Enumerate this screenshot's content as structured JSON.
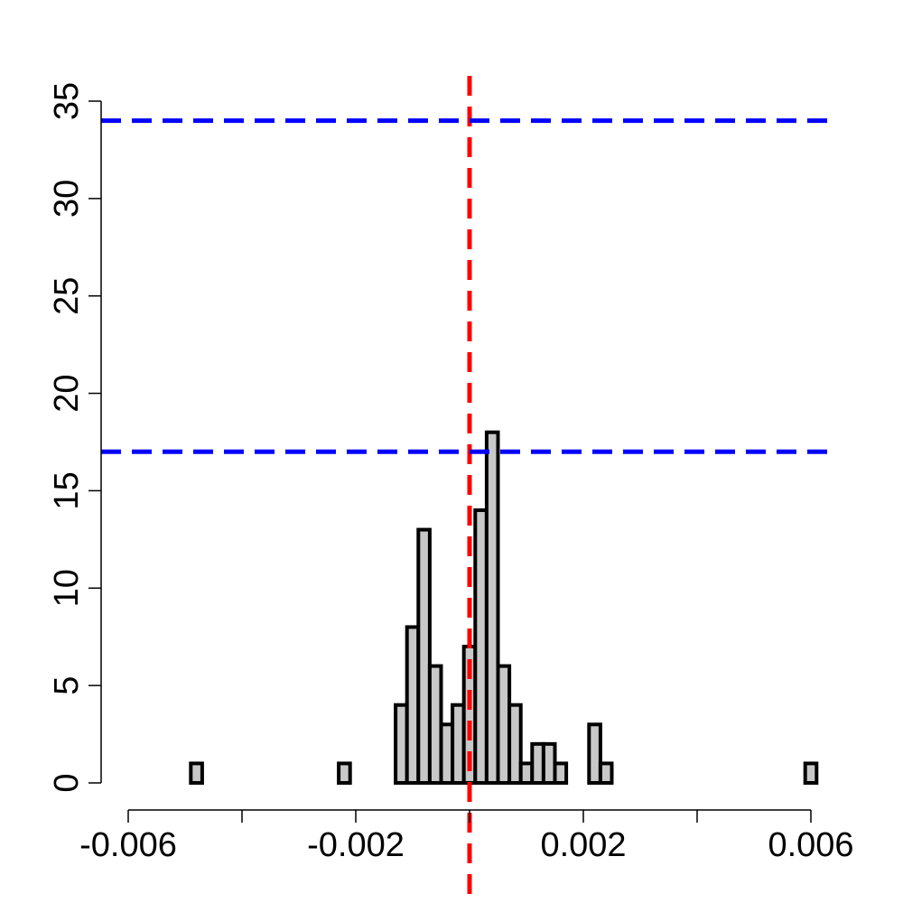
{
  "chart_data": {
    "type": "bar",
    "title": "",
    "xlabel": "",
    "ylabel": "",
    "xlim": [
      -0.006,
      0.006
    ],
    "ylim": [
      0,
      35
    ],
    "x_ticks": [
      -0.006,
      -0.004,
      -0.002,
      0,
      0.002,
      0.004,
      0.006
    ],
    "x_tick_labels": [
      "-0.006",
      "",
      "-0.002",
      "",
      "0.002",
      "",
      "0.006"
    ],
    "y_ticks": [
      0,
      5,
      10,
      15,
      20,
      25,
      30,
      35
    ],
    "y_tick_labels": [
      "0",
      "5",
      "10",
      "15",
      "20",
      "25",
      "30",
      "35"
    ],
    "bin_width": 0.0002,
    "bin_start": -0.0049,
    "counts": [
      1,
      0,
      0,
      0,
      0,
      0,
      0,
      0,
      0,
      0,
      0,
      0,
      0,
      1,
      0,
      0,
      0,
      0,
      4,
      8,
      13,
      6,
      3,
      4,
      7,
      14,
      18,
      6,
      4,
      1,
      2,
      2,
      1,
      0,
      0,
      3,
      1,
      0,
      0,
      0,
      0,
      0,
      0,
      0,
      0,
      0,
      0,
      0,
      0,
      0,
      0,
      0,
      0,
      0,
      1
    ],
    "bar_fill": "#c8c8c8",
    "bar_stroke": "#000000",
    "reference_lines": [
      {
        "orientation": "vertical",
        "value": 0.0,
        "color": "#ff0000",
        "style": "dashed"
      },
      {
        "orientation": "horizontal",
        "value": 17,
        "color": "#0000ff",
        "style": "dashed"
      },
      {
        "orientation": "horizontal",
        "value": 34,
        "color": "#0000ff",
        "style": "dashed"
      }
    ],
    "grid": false,
    "legend": "none"
  }
}
